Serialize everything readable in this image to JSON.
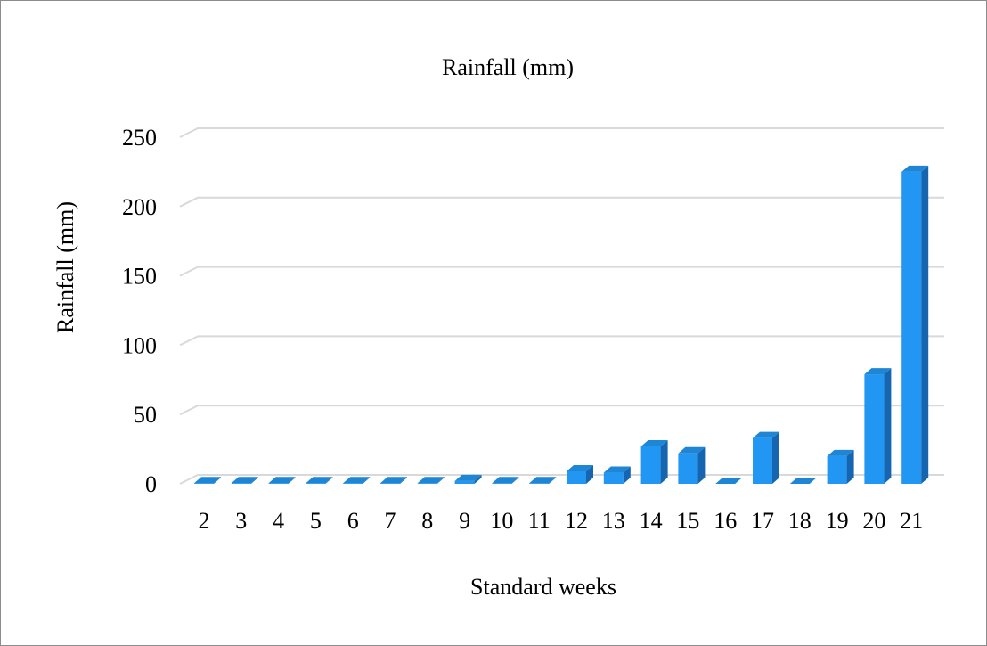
{
  "chart_data": {
    "type": "bar",
    "title": "Rainfall (mm)",
    "xlabel": "Standard weeks",
    "ylabel": "Rainfall (mm)",
    "categories": [
      "2",
      "3",
      "4",
      "5",
      "6",
      "7",
      "8",
      "9",
      "10",
      "11",
      "12",
      "13",
      "14",
      "15",
      "16",
      "17",
      "18",
      "19",
      "20",
      "21"
    ],
    "values": [
      0.5,
      0.5,
      0.5,
      0.5,
      0.5,
      0.5,
      0.5,
      2,
      0.5,
      0.5,
      9,
      8,
      27,
      22,
      0,
      33,
      0,
      20,
      79,
      225
    ],
    "ylim": [
      0,
      250
    ],
    "yticks": [
      0,
      50,
      100,
      150,
      200,
      250
    ],
    "grid": true,
    "legend": "none",
    "colors": {
      "bar_front": "#2196f3",
      "bar_top": "#1f86d6",
      "bar_side": "#1565b0",
      "grid": "#d9d9d9",
      "text": "#000000"
    }
  }
}
